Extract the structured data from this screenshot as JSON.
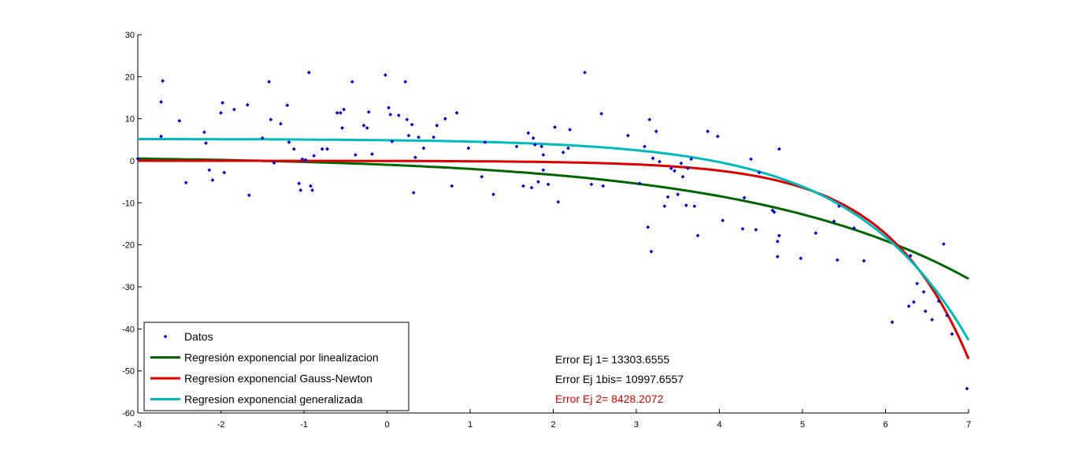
{
  "chart_data": {
    "type": "scatter",
    "xlim": [
      -3,
      7
    ],
    "ylim": [
      -60,
      30
    ],
    "xticks": [
      "-3",
      "-2",
      "-1",
      "0",
      "1",
      "2",
      "3",
      "4",
      "5",
      "6",
      "7"
    ],
    "yticks": [
      "30",
      "20",
      "10",
      "0",
      "-10",
      "-20",
      "-30",
      "-40",
      "-50",
      "-60"
    ],
    "grid": false,
    "legend_position": "bottom-left",
    "points": {
      "name": "Datos",
      "color": "#0000cc",
      "x": [
        -3.0,
        -2.72,
        -2.7,
        -2.72,
        -2.5,
        -2.42,
        -2.2,
        -2.18,
        -2.14,
        -2.1,
        -2.0,
        -1.98,
        -1.96,
        -1.84,
        -1.68,
        -1.66,
        -1.5,
        -1.42,
        -1.4,
        -1.36,
        -1.28,
        -1.2,
        -1.18,
        -1.12,
        -1.06,
        -1.04,
        -1.02,
        -0.98,
        -0.94,
        -0.92,
        -0.9,
        -0.88,
        -0.78,
        -0.72,
        -0.6,
        -0.56,
        -0.54,
        -0.52,
        -0.42,
        -0.38,
        -0.28,
        -0.24,
        -0.22,
        -0.18,
        -0.02,
        0.02,
        0.04,
        0.06,
        0.14,
        0.22,
        0.24,
        0.26,
        0.3,
        0.32,
        0.34,
        0.38,
        0.44,
        0.56,
        0.6,
        0.7,
        0.78,
        0.84,
        0.98,
        1.14,
        1.18,
        1.28,
        1.56,
        1.64,
        1.7,
        1.74,
        1.76,
        1.78,
        1.82,
        1.86,
        1.88,
        1.88,
        1.94,
        2.02,
        2.06,
        2.12,
        2.18,
        2.2,
        2.38,
        2.46,
        2.58,
        2.6,
        2.9,
        3.04,
        3.1,
        3.14,
        3.16,
        3.18,
        3.2,
        3.24,
        3.28,
        3.34,
        3.38,
        3.42,
        3.46,
        3.5,
        3.54,
        3.56,
        3.6,
        3.62,
        3.66,
        3.7,
        3.74,
        3.86,
        3.98,
        4.04,
        4.28,
        4.3,
        4.38,
        4.44,
        4.48,
        4.64,
        4.66,
        4.7,
        4.7,
        4.72,
        4.72,
        4.98,
        5.16,
        5.38,
        5.42,
        5.44,
        5.62,
        5.74,
        6.08,
        6.28,
        6.3,
        6.34,
        6.38,
        6.46,
        6.48,
        6.56,
        6.64,
        6.7,
        6.74,
        6.8,
        6.98
      ],
      "y": [
        0.5,
        14.0,
        19.0,
        5.8,
        9.5,
        -5.2,
        6.8,
        4.2,
        -2.2,
        -4.6,
        11.4,
        13.8,
        -2.8,
        12.2,
        13.3,
        -8.2,
        5.4,
        18.8,
        9.8,
        -0.5,
        8.8,
        13.2,
        4.4,
        2.8,
        -5.4,
        -7.0,
        0.4,
        0.2,
        21.0,
        -6.0,
        -7.0,
        1.2,
        2.8,
        2.8,
        11.4,
        11.4,
        7.8,
        12.2,
        18.8,
        1.4,
        8.4,
        7.8,
        11.6,
        1.6,
        20.4,
        12.6,
        11.0,
        4.6,
        10.8,
        18.8,
        9.8,
        6.0,
        8.6,
        -7.6,
        0.8,
        5.6,
        3.0,
        5.6,
        8.4,
        10.0,
        -6.0,
        11.4,
        3.0,
        -3.8,
        4.4,
        -8.0,
        3.4,
        -6.0,
        6.6,
        -6.4,
        5.4,
        3.8,
        -5.0,
        3.4,
        -2.2,
        1.4,
        -5.6,
        8.0,
        -9.8,
        2.0,
        3.0,
        7.4,
        21.0,
        -5.6,
        11.2,
        -6.0,
        6.0,
        -5.4,
        3.4,
        -15.8,
        9.8,
        -21.6,
        0.6,
        7.0,
        -0.2,
        -10.8,
        -8.6,
        -1.8,
        -2.4,
        -8.0,
        -0.6,
        -3.8,
        -10.6,
        -1.8,
        0.4,
        -10.8,
        -17.8,
        7.0,
        5.8,
        -14.2,
        -16.2,
        -8.8,
        0.4,
        -16.4,
        -2.8,
        -11.8,
        -12.2,
        -19.2,
        -22.8,
        -17.8,
        2.8,
        -23.2,
        -17.2,
        -14.4,
        -23.6,
        -10.8,
        -16.0,
        -23.8,
        -38.4,
        -34.6,
        -22.6,
        -33.6,
        -29.2,
        -31.2,
        -35.8,
        -37.8,
        -33.4,
        -19.8,
        -36.8,
        -41.2,
        -54.2
      ]
    },
    "series": [
      {
        "name": "Regresión exponencial por linealizacion",
        "color": "#006600",
        "model": {
          "type": "shifted_exp",
          "a": -2.2,
          "b": 0.37,
          "c": 1.25
        }
      },
      {
        "name": "Regresion exponencial Gauss-Newton",
        "color": "#dd0000",
        "model": {
          "type": "shifted_exp",
          "a": -0.043,
          "b": 1.0,
          "c": 0.0
        }
      },
      {
        "name": "Regresion exponencial generalizada",
        "color": "#00bbbb",
        "model": {
          "type": "shifted_exp",
          "a": -0.31,
          "b": 0.72,
          "c": 5.2
        }
      }
    ],
    "annotations": [
      {
        "text": "Error Ej 1= 13303.6555",
        "color": "#000000"
      },
      {
        "text": "Error Ej 1bis= 10997.6557",
        "color": "#000000"
      },
      {
        "text": "Error Ej 2= 8428.2072",
        "color": "#dd0000"
      }
    ]
  }
}
